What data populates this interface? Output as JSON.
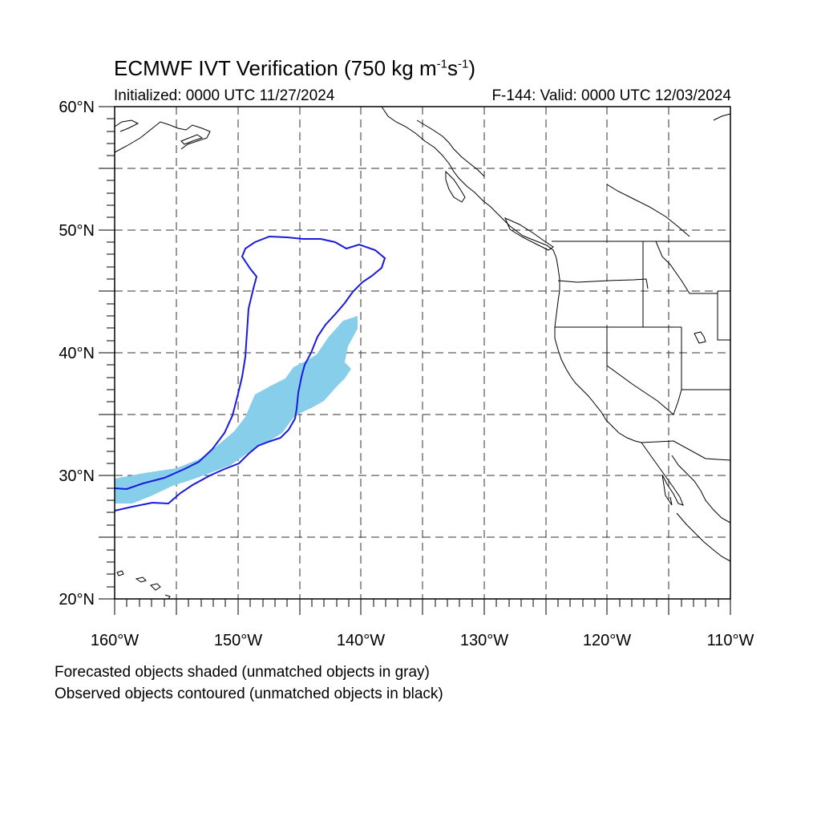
{
  "header": {
    "title_main": "ECMWF IVT Verification (750 kg m",
    "title_sup1": "-1",
    "title_mid": "s",
    "title_sup2": "-1",
    "title_end": ")",
    "initialized": "Initialized: 0000 UTC 11/27/2024",
    "valid": "F-144: Valid: 0000 UTC 12/03/2024"
  },
  "axes": {
    "lat_labels": [
      "60°N",
      "50°N",
      "40°N",
      "30°N",
      "20°N"
    ],
    "lon_labels": [
      "160°W",
      "150°W",
      "140°W",
      "130°W",
      "120°W",
      "110°W"
    ],
    "lon_range": [
      -160,
      -110
    ],
    "lat_range": [
      20,
      60
    ]
  },
  "colors": {
    "forecast_fill": "#87ceeb",
    "observed_contour": "#1a1adb",
    "coastline": "#000000"
  },
  "footer": {
    "line1": "Forecasted objects shaded (unmatched objects in gray)",
    "line2": "Observed objects contoured (unmatched objects in black)"
  }
}
